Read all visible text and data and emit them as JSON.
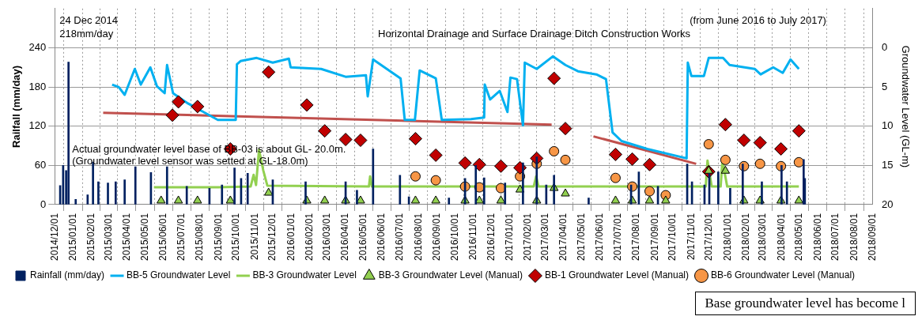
{
  "chart_data": {
    "type": "bar",
    "ylabel": "Railfall (mm/day)",
    "y2label": "Groundwater Level (GL-m)",
    "annotations": [
      "24 Dec 2014",
      "218mm/day",
      "(from June 2016 to July 2017)",
      "Horizontal Drainage and Surface Drainage Ditch Construction Works",
      "Actual groundwater level base of BB-03 is about GL- 20.0m.",
      "(Groundwater level sensor was setted at GL-18.0m)",
      "Base groundwater level has become l"
    ],
    "xlim": [
      "2014-12-01",
      "2018-09-01"
    ],
    "xticks": [
      {
        "value": "2014-12-01",
        "label": "2014/12/01"
      },
      {
        "value": "2015-01-01",
        "label": "2015/01/01"
      },
      {
        "value": "2015-02-01",
        "label": "2015/02/01"
      },
      {
        "value": "2015-03-01",
        "label": "2015/03/01"
      },
      {
        "value": "2015-04-01",
        "label": "2015/04/01"
      },
      {
        "value": "2015-05-01",
        "label": "2015/05/01"
      },
      {
        "value": "2015-06-01",
        "label": "2015/06/01"
      },
      {
        "value": "2015-07-01",
        "label": "2015/07/01"
      },
      {
        "value": "2015-08-01",
        "label": "2015/08/01"
      },
      {
        "value": "2015-09-01",
        "label": "2015/09/01"
      },
      {
        "value": "2015-10-01",
        "label": "2015/10/01"
      },
      {
        "value": "2015-11-01",
        "label": "2015/11/01"
      },
      {
        "value": "2015-12-01",
        "label": "2015/12/01"
      },
      {
        "value": "2016-01-01",
        "label": "2016/01/01"
      },
      {
        "value": "2016-02-01",
        "label": "2016/02/01"
      },
      {
        "value": "2016-03-01",
        "label": "2016/03/01"
      },
      {
        "value": "2016-04-01",
        "label": "2016/04/01"
      },
      {
        "value": "2016-05-01",
        "label": "2016/05/01"
      },
      {
        "value": "2016-06-01",
        "label": "2016/06/01"
      },
      {
        "value": "2016-07-01",
        "label": "2016/07/01"
      },
      {
        "value": "2016-08-01",
        "label": "2016/08/01"
      },
      {
        "value": "2016-09-01",
        "label": "2016/09/01"
      },
      {
        "value": "2016-10-01",
        "label": "2016/10/01"
      },
      {
        "value": "2016-11-01",
        "label": "2016/11/01"
      },
      {
        "value": "2016-12-01",
        "label": "2016/12/01"
      },
      {
        "value": "2017-01-01",
        "label": "2017/01/01"
      },
      {
        "value": "2017-02-01",
        "label": "2017/02/01"
      },
      {
        "value": "2017-03-01",
        "label": "2017/03/01"
      },
      {
        "value": "2017-04-01",
        "label": "2017/04/01"
      },
      {
        "value": "2017-05-01",
        "label": "2017/05/01"
      },
      {
        "value": "2017-06-01",
        "label": "2017/06/01"
      },
      {
        "value": "2017-07-01",
        "label": "2017/07/01"
      },
      {
        "value": "2017-08-01",
        "label": "2017/08/01"
      },
      {
        "value": "2017-09-01",
        "label": "2017/09/01"
      },
      {
        "value": "2017-10-01",
        "label": "2017/10/01"
      },
      {
        "value": "2017-11-01",
        "label": "2017/11/01"
      },
      {
        "value": "2017-12-01",
        "label": "2017/12/01"
      },
      {
        "value": "2018-01-01",
        "label": "2018/01/01"
      },
      {
        "value": "2018-02-01",
        "label": "2018/02/01"
      },
      {
        "value": "2018-03-01",
        "label": "2018/03/01"
      },
      {
        "value": "2018-04-01",
        "label": "2018/04/01"
      },
      {
        "value": "2018-05-01",
        "label": "2018/05/01"
      },
      {
        "value": "2018-06-01",
        "label": "2018/06/01"
      },
      {
        "value": "2018-07-01",
        "label": "2018/07/01"
      },
      {
        "value": "2018-08-01",
        "label": "2018/08/01"
      },
      {
        "value": "2018-09-01",
        "label": "2018/09/01"
      }
    ],
    "ylim": [
      0,
      300
    ],
    "yticks": [
      0,
      60,
      120,
      180,
      240
    ],
    "y2lim": [
      20,
      -5
    ],
    "y2ticks": [
      0,
      5,
      10,
      15,
      20
    ],
    "grid": true,
    "legend": "bottom",
    "series": [
      {
        "name": "Rainfall (mm/day)",
        "color": "#002060",
        "x": [
          "2014-12-10",
          "2014-12-15",
          "2014-12-20",
          "2014-12-24",
          "2015-01-05",
          "2015-01-25",
          "2015-02-03",
          "2015-02-12",
          "2015-02-28",
          "2015-03-13",
          "2015-03-28",
          "2015-04-15",
          "2015-05-11",
          "2015-06-07",
          "2015-07-10",
          "2015-08-17",
          "2015-09-07",
          "2015-09-28",
          "2015-10-09",
          "2015-10-20",
          "2015-12-01",
          "2016-01-25",
          "2016-04-01",
          "2016-04-20",
          "2016-05-17",
          "2016-07-01",
          "2016-07-16",
          "2016-09-21",
          "2016-10-18",
          "2016-11-05",
          "2016-11-19",
          "2016-12-24",
          "2017-01-23",
          "2017-02-15",
          "2017-03-03",
          "2017-03-16",
          "2017-05-13",
          "2017-07-23",
          "2017-08-05",
          "2017-09-06",
          "2017-10-25",
          "2017-11-02",
          "2017-11-23",
          "2017-12-01",
          "2017-12-16",
          "2018-01-05",
          "2018-01-26",
          "2018-02-27",
          "2018-04-01",
          "2018-04-10",
          "2018-05-08",
          "2018-05-10"
        ],
        "values": [
          29,
          60,
          52,
          218,
          8,
          15,
          65,
          35,
          33,
          35,
          38,
          58,
          49,
          58,
          28,
          25,
          30,
          56,
          40,
          48,
          38,
          35,
          35,
          22,
          85,
          45,
          12,
          10,
          40,
          60,
          41,
          33,
          64,
          73,
          30,
          45,
          10,
          30,
          50,
          28,
          62,
          35,
          30,
          48,
          50,
          25,
          62,
          35,
          60,
          35,
          69,
          40
        ]
      },
      {
        "name": "BB-5 Groundwater Level",
        "type": "line",
        "axis": "y2",
        "color": "#00b0f0",
        "x": [
          "2015-03-07",
          "2015-03-18",
          "2015-03-28",
          "2015-04-14",
          "2015-04-24",
          "2015-05-10",
          "2015-05-21",
          "2015-06-03",
          "2015-06-07",
          "2015-06-17",
          "2015-07-12",
          "2015-08-31",
          "2015-09-30",
          "2015-10-02",
          "2015-10-08",
          "2015-11-04",
          "2015-12-01",
          "2015-12-28",
          "2015-12-31",
          "2016-02-20",
          "2016-04-01",
          "2016-05-05",
          "2016-05-08",
          "2016-05-17",
          "2016-07-02",
          "2016-07-09",
          "2016-07-26",
          "2016-08-03",
          "2016-08-30",
          "2016-09-09",
          "2016-10-28",
          "2016-11-19",
          "2016-11-20",
          "2016-11-29",
          "2016-12-15",
          "2016-12-28",
          "2017-01-02",
          "2017-01-13",
          "2017-01-23",
          "2017-01-26",
          "2017-02-15",
          "2017-03-14",
          "2017-04-04",
          "2017-04-25",
          "2017-05-26",
          "2017-06-11",
          "2017-06-22",
          "2017-07-07",
          "2017-08-19",
          "2017-10-24",
          "2017-10-26",
          "2017-11-01",
          "2017-11-22",
          "2017-11-30",
          "2017-12-24",
          "2018-01-04",
          "2018-02-15",
          "2018-02-25",
          "2018-03-18",
          "2018-04-03",
          "2018-04-16",
          "2018-04-30"
        ],
        "values": [
          4.7,
          5.0,
          6.0,
          2.7,
          4.7,
          2.5,
          4.9,
          5.8,
          2.2,
          5.8,
          7.1,
          9.2,
          9.2,
          2.1,
          1.7,
          1.3,
          1.9,
          1.4,
          2.5,
          2.7,
          3.7,
          3.5,
          6.2,
          1.5,
          3.9,
          9.2,
          9.2,
          2.9,
          3.9,
          9.2,
          9.1,
          8.9,
          4.7,
          6.6,
          5.5,
          8.2,
          3.8,
          4.0,
          9.9,
          1.9,
          2.7,
          1.1,
          2.2,
          3.0,
          3.4,
          4.0,
          10.8,
          11.9,
          12.9,
          14.1,
          1.9,
          3.6,
          3.6,
          1.3,
          1.3,
          2.2,
          2.7,
          3.4,
          2.5,
          3.2,
          1.5,
          2.7
        ]
      },
      {
        "name": "BB-3 Groundwater Level",
        "type": "line",
        "axis": "y2",
        "color": "#92d050",
        "x": [
          "2015-05-16",
          "2015-09-01",
          "2015-10-25",
          "2015-10-30",
          "2015-11-03",
          "2015-11-08",
          "2015-11-15",
          "2015-11-22",
          "2016-05-10",
          "2016-05-12",
          "2016-05-15",
          "2017-02-10",
          "2017-02-14",
          "2017-02-18",
          "2017-11-25",
          "2017-11-28",
          "2017-12-05",
          "2017-12-20",
          "2017-12-23",
          "2017-12-31",
          "2018-04-30"
        ],
        "values": [
          17.8,
          17.8,
          17.7,
          16.2,
          17.5,
          13.0,
          15.6,
          17.6,
          17.7,
          16.4,
          17.7,
          17.7,
          16.4,
          17.7,
          17.7,
          14.4,
          17.7,
          17.7,
          14.4,
          17.7,
          17.7
        ]
      },
      {
        "name": "BB-3 Groundwater Level (Manual)",
        "type": "scatter",
        "axis": "y2",
        "marker": "triangle",
        "color": "#92d050",
        "x": [
          "2015-05-28",
          "2015-06-26",
          "2015-07-28",
          "2015-09-21",
          "2015-11-24",
          "2016-01-27",
          "2016-02-26",
          "2016-04-01",
          "2016-04-26",
          "2016-07-27",
          "2016-08-30",
          "2016-10-18",
          "2016-11-11",
          "2016-12-17",
          "2017-01-18",
          "2017-02-15",
          "2017-03-16",
          "2017-04-04",
          "2017-06-27",
          "2017-07-25",
          "2017-08-23",
          "2017-09-19",
          "2017-11-30",
          "2017-12-28",
          "2018-01-28",
          "2018-02-24",
          "2018-03-31",
          "2018-04-30"
        ],
        "values": [
          19.5,
          19.5,
          19.5,
          19.5,
          18.5,
          19.5,
          19.5,
          19.5,
          19.5,
          19.5,
          19.5,
          19.5,
          19.5,
          19.5,
          18.1,
          19.5,
          17.9,
          18.6,
          19.5,
          19.5,
          19.5,
          19.5,
          15.7,
          15.7,
          19.5,
          19.5,
          19.5,
          19.5
        ]
      },
      {
        "name": "BB-1 Groundwater Level (Manual)",
        "type": "scatter",
        "axis": "y2",
        "marker": "diamond",
        "color": "#c00000",
        "x": [
          "2015-06-16",
          "2015-06-26",
          "2015-07-28",
          "2015-09-21",
          "2015-11-24",
          "2016-01-27",
          "2016-02-26",
          "2016-04-01",
          "2016-04-26",
          "2016-07-27",
          "2016-08-30",
          "2016-10-18",
          "2016-11-11",
          "2016-12-17",
          "2017-01-18",
          "2017-02-15",
          "2017-03-16",
          "2017-04-04",
          "2017-06-27",
          "2017-07-25",
          "2017-08-23",
          "2017-11-30",
          "2017-12-28",
          "2018-01-28",
          "2018-02-24",
          "2018-03-31",
          "2018-04-30"
        ],
        "values": [
          8.6,
          6.9,
          7.5,
          12.9,
          3.1,
          7.3,
          10.6,
          11.7,
          11.8,
          11.6,
          13.7,
          14.7,
          14.9,
          15.1,
          15.3,
          14.1,
          3.9,
          10.3,
          13.6,
          14.2,
          14.9,
          15.8,
          9.8,
          11.8,
          12.1,
          12.9,
          10.6
        ]
      },
      {
        "name": "BB-6 Groundwater Level (Manual)",
        "type": "scatter",
        "axis": "y2",
        "marker": "circle",
        "color": "#f79646",
        "x": [
          "2016-07-27",
          "2016-08-30",
          "2016-10-18",
          "2016-11-11",
          "2016-12-17",
          "2017-01-18",
          "2017-02-15",
          "2017-03-16",
          "2017-04-04",
          "2017-06-27",
          "2017-07-25",
          "2017-08-23",
          "2017-09-19",
          "2017-11-30",
          "2017-12-28",
          "2018-01-28",
          "2018-02-24",
          "2018-03-31",
          "2018-04-30"
        ],
        "values": [
          16.4,
          16.9,
          17.7,
          17.8,
          17.9,
          16.4,
          14.8,
          13.2,
          14.3,
          16.6,
          17.7,
          18.3,
          18.8,
          12.3,
          14.3,
          15.1,
          14.8,
          15.1,
          14.6
        ]
      },
      {
        "type": "line",
        "axis": "y2",
        "color": "#c0504d",
        "x": [
          "2015-02-20",
          "2017-03-12"
        ],
        "values": [
          8.3,
          9.8
        ]
      },
      {
        "type": "line",
        "axis": "y2",
        "color": "#c0504d",
        "x": [
          "2017-05-21",
          "2017-11-09"
        ],
        "values": [
          11.3,
          14.8
        ]
      }
    ]
  }
}
